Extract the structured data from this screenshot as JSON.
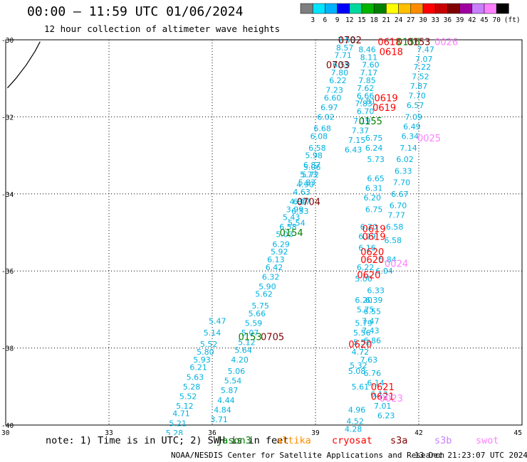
{
  "header": {
    "title": "00:00 – 11:59 UTC 01/06/2024",
    "subtitle": "12 hour collection of altimeter wave heights"
  },
  "colorbar": {
    "unit_label": "(ft)",
    "ticks": [
      "3",
      "6",
      "9",
      "12",
      "15",
      "18",
      "21",
      "24",
      "27",
      "30",
      "33",
      "36",
      "39",
      "42",
      "45",
      "70"
    ],
    "colors": [
      "#7f7f7f",
      "#00e5ff",
      "#00b2ff",
      "#0000ff",
      "#00d8a0",
      "#00b400",
      "#008000",
      "#ffff00",
      "#ffc000",
      "#ff8c00",
      "#ff0000",
      "#c80000",
      "#800000",
      "#a000a0",
      "#c880ff",
      "#ff80ff",
      "#000000"
    ]
  },
  "footer": {
    "note": "note: 1) Time is in UTC; 2) SWH is in feet",
    "satellites": [
      {
        "name": "jason3",
        "color": "#008000"
      },
      {
        "name": "altika",
        "color": "#ff8c00"
      },
      {
        "name": "cryosat",
        "color": "#ff0000"
      },
      {
        "name": "s3a",
        "color": "#800000"
      },
      {
        "name": "s3b",
        "color": "#c880ff"
      },
      {
        "name": "swot",
        "color": "#ff80ff"
      }
    ],
    "credit": "NOAA/NESDIS Center for Satellite Applications and Research",
    "generated": "13 Dec 21:23:07 UTC 2024"
  },
  "chart_data": {
    "type": "scatter",
    "title": "00:00 – 11:59 UTC 01/06/2024",
    "subtitle": "12 hour collection of altimeter wave heights",
    "xlim": [
      30,
      45
    ],
    "ylim": [
      -40,
      -30
    ],
    "x_ticks": [
      "30",
      "33",
      "36",
      "39",
      "42",
      "45"
    ],
    "y_ticks": [
      "-30",
      "-32",
      "-34",
      "-36",
      "-38",
      "-40"
    ],
    "grid": true,
    "value_color": "#00b2e0",
    "coastline": [
      [
        30.05,
        -31.25
      ],
      [
        30.3,
        -31.0
      ],
      [
        30.6,
        -30.65
      ],
      [
        30.85,
        -30.3
      ],
      [
        31.0,
        -30.05
      ]
    ],
    "track_values": [
      {
        "lon": 39.9,
        "lat": -30.0,
        "v": "7.50"
      },
      {
        "lon": 39.85,
        "lat": -30.2,
        "v": "8.57"
      },
      {
        "lon": 39.8,
        "lat": -30.4,
        "v": "7.71"
      },
      {
        "lon": 39.75,
        "lat": -30.65,
        "v": "6.59"
      },
      {
        "lon": 39.7,
        "lat": -30.85,
        "v": "7.80"
      },
      {
        "lon": 39.65,
        "lat": -31.05,
        "v": "6.22"
      },
      {
        "lon": 39.55,
        "lat": -31.3,
        "v": "7.23"
      },
      {
        "lon": 39.5,
        "lat": -31.5,
        "v": "6.60"
      },
      {
        "lon": 39.4,
        "lat": -31.75,
        "v": "6.97"
      },
      {
        "lon": 39.3,
        "lat": -32.0,
        "v": "6.02"
      },
      {
        "lon": 39.2,
        "lat": -32.3,
        "v": "6.68"
      },
      {
        "lon": 39.1,
        "lat": -32.5,
        "v": "6.08"
      },
      {
        "lon": 39.05,
        "lat": -32.8,
        "v": "6.58"
      },
      {
        "lon": 38.95,
        "lat": -33.0,
        "v": "5.98"
      },
      {
        "lon": 38.9,
        "lat": -33.3,
        "v": "5.06"
      },
      {
        "lon": 38.8,
        "lat": -33.5,
        "v": "5.73"
      },
      {
        "lon": 38.7,
        "lat": -33.75,
        "v": "4.90"
      },
      {
        "lon": 38.6,
        "lat": -33.95,
        "v": "4.63"
      },
      {
        "lon": 38.5,
        "lat": -34.2,
        "v": "4.84"
      },
      {
        "lon": 38.4,
        "lat": -34.4,
        "v": "3.99"
      },
      {
        "lon": 38.3,
        "lat": -34.6,
        "v": "5.43"
      },
      {
        "lon": 38.2,
        "lat": -34.85,
        "v": "6.58"
      },
      {
        "lon": 38.1,
        "lat": -35.05,
        "v": "5.03"
      },
      {
        "lon": 38.0,
        "lat": -35.3,
        "v": "6.29"
      },
      {
        "lon": 37.95,
        "lat": -35.5,
        "v": "5.92"
      },
      {
        "lon": 37.85,
        "lat": -35.7,
        "v": "6.13"
      },
      {
        "lon": 37.8,
        "lat": -35.9,
        "v": "6.42"
      },
      {
        "lon": 37.7,
        "lat": -36.15,
        "v": "6.32"
      },
      {
        "lon": 37.6,
        "lat": -36.4,
        "v": "5.90"
      },
      {
        "lon": 37.5,
        "lat": -36.6,
        "v": "5.62"
      },
      {
        "lon": 37.4,
        "lat": -36.9,
        "v": "5.75"
      },
      {
        "lon": 37.3,
        "lat": -37.1,
        "v": "5.66"
      },
      {
        "lon": 37.2,
        "lat": -37.35,
        "v": "5.59"
      },
      {
        "lon": 37.1,
        "lat": -37.6,
        "v": "5.07"
      },
      {
        "lon": 37.0,
        "lat": -37.85,
        "v": "5.12"
      },
      {
        "lon": 36.9,
        "lat": -38.05,
        "v": "5.64"
      },
      {
        "lon": 36.8,
        "lat": -38.3,
        "v": "4.20"
      },
      {
        "lon": 36.7,
        "lat": -38.6,
        "v": "5.06"
      },
      {
        "lon": 36.6,
        "lat": -38.85,
        "v": "5.54"
      },
      {
        "lon": 36.5,
        "lat": -39.1,
        "v": "5.87"
      },
      {
        "lon": 36.4,
        "lat": -39.35,
        "v": "4.44"
      },
      {
        "lon": 36.3,
        "lat": -39.6,
        "v": "4.84"
      },
      {
        "lon": 36.2,
        "lat": -39.85,
        "v": "3.71"
      },
      {
        "lon": 38.9,
        "lat": -33.25,
        "v": "6.87"
      },
      {
        "lon": 38.85,
        "lat": -33.5,
        "v": "5.72"
      },
      {
        "lon": 38.75,
        "lat": -33.7,
        "v": "5.83"
      },
      {
        "lon": 38.6,
        "lat": -34.2,
        "v": "6.17"
      },
      {
        "lon": 38.55,
        "lat": -34.45,
        "v": "6.53"
      },
      {
        "lon": 38.45,
        "lat": -34.75,
        "v": "5.54"
      },
      {
        "lon": 36.15,
        "lat": -37.3,
        "v": "5.47"
      },
      {
        "lon": 36.0,
        "lat": -37.6,
        "v": "5.14"
      },
      {
        "lon": 35.9,
        "lat": -37.9,
        "v": "5.52"
      },
      {
        "lon": 35.8,
        "lat": -38.1,
        "v": "5.80"
      },
      {
        "lon": 35.7,
        "lat": -38.3,
        "v": "5.93"
      },
      {
        "lon": 35.6,
        "lat": -38.5,
        "v": "6.21"
      },
      {
        "lon": 35.5,
        "lat": -38.75,
        "v": "5.63"
      },
      {
        "lon": 35.4,
        "lat": -39.0,
        "v": "5.28"
      },
      {
        "lon": 35.3,
        "lat": -39.25,
        "v": "5.52"
      },
      {
        "lon": 35.2,
        "lat": -39.5,
        "v": "5.12"
      },
      {
        "lon": 35.1,
        "lat": -39.7,
        "v": "4.71"
      },
      {
        "lon": 35.0,
        "lat": -39.95,
        "v": "5.21"
      },
      {
        "lon": 34.9,
        "lat": -40.2,
        "v": "5.28"
      },
      {
        "lon": 40.5,
        "lat": -31.6,
        "v": "7.81"
      },
      {
        "lon": 40.45,
        "lat": -31.85,
        "v": "6.70"
      },
      {
        "lon": 40.35,
        "lat": -32.1,
        "v": "7.19"
      },
      {
        "lon": 40.3,
        "lat": -32.35,
        "v": "7.37"
      },
      {
        "lon": 40.2,
        "lat": -32.6,
        "v": "7.15"
      },
      {
        "lon": 40.1,
        "lat": -32.85,
        "v": "6.43"
      },
      {
        "lon": 40.7,
        "lat": -32.55,
        "v": "6.75"
      },
      {
        "lon": 40.7,
        "lat": -32.8,
        "v": "6.24"
      },
      {
        "lon": 40.75,
        "lat": -33.1,
        "v": "5.73"
      },
      {
        "lon": 40.75,
        "lat": -33.6,
        "v": "6.65"
      },
      {
        "lon": 40.7,
        "lat": -33.85,
        "v": "6.31"
      },
      {
        "lon": 40.65,
        "lat": -34.1,
        "v": "6.20"
      },
      {
        "lon": 40.7,
        "lat": -34.4,
        "v": "6.75"
      },
      {
        "lon": 40.55,
        "lat": -34.85,
        "v": "6.20"
      },
      {
        "lon": 40.5,
        "lat": -35.1,
        "v": "6.29"
      },
      {
        "lon": 40.5,
        "lat": -35.4,
        "v": "6.16"
      },
      {
        "lon": 40.45,
        "lat": -35.9,
        "v": "6.22"
      },
      {
        "lon": 40.4,
        "lat": -36.2,
        "v": "5.00"
      },
      {
        "lon": 40.4,
        "lat": -36.75,
        "v": "6.20"
      },
      {
        "lon": 40.45,
        "lat": -37.0,
        "v": "5.75"
      },
      {
        "lon": 40.4,
        "lat": -37.35,
        "v": "5.79"
      },
      {
        "lon": 40.35,
        "lat": -37.6,
        "v": "5.56"
      },
      {
        "lon": 40.35,
        "lat": -37.85,
        "v": "5.52"
      },
      {
        "lon": 40.3,
        "lat": -38.1,
        "v": "4.72"
      },
      {
        "lon": 40.25,
        "lat": -38.45,
        "v": "5.32"
      },
      {
        "lon": 40.2,
        "lat": -38.6,
        "v": "5.08"
      },
      {
        "lon": 40.3,
        "lat": -39.0,
        "v": "5.61"
      },
      {
        "lon": 40.2,
        "lat": -39.6,
        "v": "4.96"
      },
      {
        "lon": 40.15,
        "lat": -39.9,
        "v": "4.52"
      },
      {
        "lon": 40.1,
        "lat": -40.1,
        "v": "4.28"
      },
      {
        "lon": 40.55,
        "lat": -38.3,
        "v": "7.63"
      },
      {
        "lon": 40.65,
        "lat": -38.65,
        "v": "6.76"
      },
      {
        "lon": 40.75,
        "lat": -38.9,
        "v": "6.14"
      },
      {
        "lon": 40.85,
        "lat": -39.2,
        "v": "6.13"
      },
      {
        "lon": 40.95,
        "lat": -39.5,
        "v": "7.01"
      },
      {
        "lon": 41.05,
        "lat": -39.75,
        "v": "6.23"
      },
      {
        "lon": 40.6,
        "lat": -37.3,
        "v": "7.47"
      },
      {
        "lon": 40.6,
        "lat": -37.55,
        "v": "7.43"
      },
      {
        "lon": 40.65,
        "lat": -37.8,
        "v": "6.86"
      },
      {
        "lon": 40.65,
        "lat": -37.05,
        "v": "6.55"
      },
      {
        "lon": 40.7,
        "lat": -36.75,
        "v": "6.39"
      },
      {
        "lon": 40.75,
        "lat": -36.5,
        "v": "6.33"
      },
      {
        "lon": 41.0,
        "lat": -36.0,
        "v": "6.04"
      },
      {
        "lon": 41.1,
        "lat": -35.7,
        "v": "5.84"
      },
      {
        "lon": 41.25,
        "lat": -35.2,
        "v": "6.58"
      },
      {
        "lon": 41.3,
        "lat": -34.85,
        "v": "6.58"
      },
      {
        "lon": 41.35,
        "lat": -34.55,
        "v": "7.77"
      },
      {
        "lon": 41.4,
        "lat": -34.3,
        "v": "6.70"
      },
      {
        "lon": 41.45,
        "lat": -34.0,
        "v": "6.67"
      },
      {
        "lon": 41.5,
        "lat": -33.7,
        "v": "7.70"
      },
      {
        "lon": 41.55,
        "lat": -33.4,
        "v": "6.33"
      },
      {
        "lon": 41.6,
        "lat": -33.1,
        "v": "6.02"
      },
      {
        "lon": 41.7,
        "lat": -32.8,
        "v": "7.14"
      },
      {
        "lon": 41.75,
        "lat": -32.5,
        "v": "6.34"
      },
      {
        "lon": 41.8,
        "lat": -32.25,
        "v": "6.49"
      },
      {
        "lon": 41.85,
        "lat": -32.0,
        "v": "7.09"
      },
      {
        "lon": 41.9,
        "lat": -31.7,
        "v": "6.57"
      },
      {
        "lon": 41.95,
        "lat": -31.45,
        "v": "7.70"
      },
      {
        "lon": 42.0,
        "lat": -31.2,
        "v": "7.87"
      },
      {
        "lon": 42.05,
        "lat": -30.95,
        "v": "7.52"
      },
      {
        "lon": 42.1,
        "lat": -30.7,
        "v": "7.22"
      },
      {
        "lon": 42.15,
        "lat": -30.5,
        "v": "7.07"
      },
      {
        "lon": 42.2,
        "lat": -30.25,
        "v": "7.47"
      },
      {
        "lon": 40.5,
        "lat": -30.25,
        "v": "8.46"
      },
      {
        "lon": 40.55,
        "lat": -30.45,
        "v": "8.11"
      },
      {
        "lon": 40.6,
        "lat": -30.65,
        "v": "7.60"
      },
      {
        "lon": 40.55,
        "lat": -30.85,
        "v": "7.17"
      },
      {
        "lon": 40.5,
        "lat": -31.05,
        "v": "7.85"
      },
      {
        "lon": 40.45,
        "lat": -31.25,
        "v": "7.62"
      },
      {
        "lon": 40.45,
        "lat": -31.45,
        "v": "6.66"
      },
      {
        "lon": 40.4,
        "lat": -31.65,
        "v": "7.83"
      }
    ],
    "pass_times": [
      {
        "lon": 40.0,
        "lat": -30.0,
        "t": "0702",
        "color": "#800000"
      },
      {
        "lon": 41.15,
        "lat": -30.05,
        "t": "0618",
        "color": "#ff0000"
      },
      {
        "lon": 41.2,
        "lat": -30.3,
        "t": "0618",
        "color": "#ff0000"
      },
      {
        "lon": 41.7,
        "lat": -30.05,
        "t": "0156",
        "color": "#008000"
      },
      {
        "lon": 42.0,
        "lat": -30.05,
        "t": "0153",
        "color": "#800000"
      },
      {
        "lon": 42.8,
        "lat": -30.05,
        "t": "0026",
        "color": "#ff80ff"
      },
      {
        "lon": 39.65,
        "lat": -30.65,
        "t": "0703",
        "color": "#800000"
      },
      {
        "lon": 41.05,
        "lat": -31.5,
        "t": "0619",
        "color": "#ff0000"
      },
      {
        "lon": 41.0,
        "lat": -31.75,
        "t": "0619",
        "color": "#ff0000"
      },
      {
        "lon": 40.6,
        "lat": -32.1,
        "t": "0155",
        "color": "#008000"
      },
      {
        "lon": 42.3,
        "lat": -32.55,
        "t": "0025",
        "color": "#ff80ff"
      },
      {
        "lon": 38.8,
        "lat": -34.2,
        "t": "0704",
        "color": "#800000"
      },
      {
        "lon": 38.3,
        "lat": -35.0,
        "t": "0154",
        "color": "#008000"
      },
      {
        "lon": 40.7,
        "lat": -34.9,
        "t": "0619",
        "color": "#ff0000"
      },
      {
        "lon": 40.7,
        "lat": -35.1,
        "t": "0619",
        "color": "#ff0000"
      },
      {
        "lon": 40.65,
        "lat": -35.5,
        "t": "0620",
        "color": "#ff0000"
      },
      {
        "lon": 40.65,
        "lat": -35.7,
        "t": "0620",
        "color": "#ff0000"
      },
      {
        "lon": 41.35,
        "lat": -35.8,
        "t": "0024",
        "color": "#ff80ff"
      },
      {
        "lon": 40.55,
        "lat": -36.1,
        "t": "0620",
        "color": "#ff0000"
      },
      {
        "lon": 37.1,
        "lat": -37.7,
        "t": "0153",
        "color": "#008000"
      },
      {
        "lon": 37.75,
        "lat": -37.7,
        "t": "0705",
        "color": "#800000"
      },
      {
        "lon": 40.3,
        "lat": -37.9,
        "t": "0620",
        "color": "#ff0000"
      },
      {
        "lon": 40.95,
        "lat": -39.0,
        "t": "0621",
        "color": "#ff0000"
      },
      {
        "lon": 40.95,
        "lat": -39.25,
        "t": "0621",
        "color": "#ff0000"
      },
      {
        "lon": 41.2,
        "lat": -39.3,
        "t": "0023",
        "color": "#ff80ff"
      }
    ]
  }
}
